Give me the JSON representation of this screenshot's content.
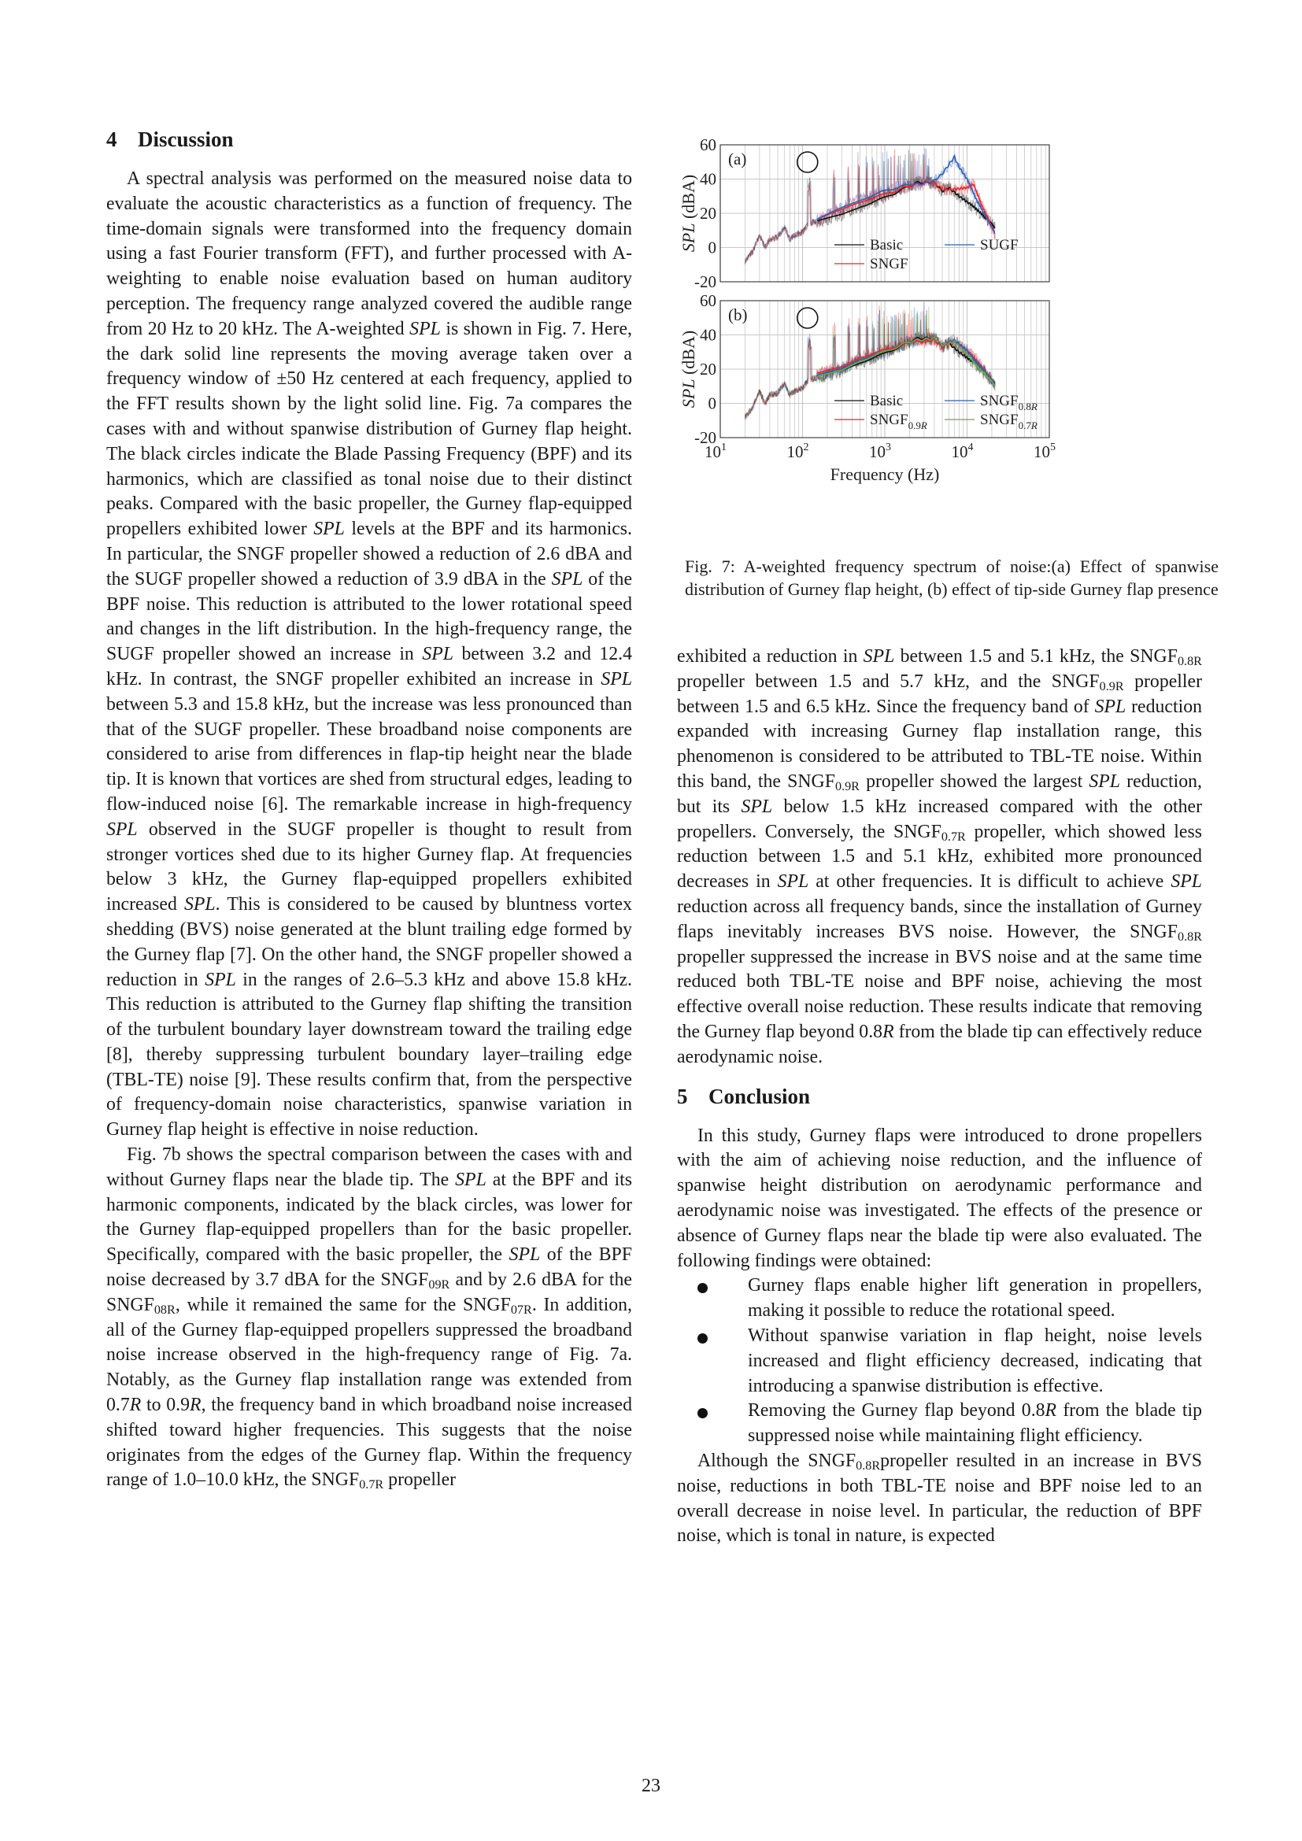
{
  "discussion": {
    "number": "4",
    "title": "Discussion",
    "paragraphs": [
      [
        {
          "t": "A spectral analysis was performed on the measured noise data to evaluate the acoustic characteristics as a function of frequency. The time-domain signals were transformed into the frequency domain using a fast Fourier transform (FFT), and further processed with A-weighting to enable noise evaluation based on human auditory perception. The frequency range analyzed covered the audible range from 20 Hz to 20 kHz. The A-weighted "
        },
        {
          "t": "SPL",
          "i": 1
        },
        {
          "t": " is shown in Fig. 7. Here, the dark solid line represents the moving average taken over a frequency window of ±50 Hz centered at each frequency, applied to the FFT results shown by the light solid line. Fig. 7a compares the cases with and without spanwise distribution of Gurney flap height. The black circles indicate the Blade Passing Frequency (BPF) and its harmonics, which are classified as tonal noise due to their distinct peaks. Compared with the basic propeller, the Gurney flap-equipped propellers exhibited lower "
        },
        {
          "t": "SPL",
          "i": 1
        },
        {
          "t": " levels at the BPF and its harmonics. In particular, the SNGF propeller showed a reduction of 2.6 dBA and the SUGF propeller showed a reduction of 3.9 dBA in the "
        },
        {
          "t": "SPL",
          "i": 1
        },
        {
          "t": " of the BPF noise. This reduction is attributed to the lower rotational speed and changes in the lift distribution. In the high-frequency range, the SUGF propeller showed an increase in "
        },
        {
          "t": "SPL",
          "i": 1
        },
        {
          "t": " between 3.2 and 12.4 kHz. In contrast, the SNGF propeller exhibited an increase in "
        },
        {
          "t": "SPL",
          "i": 1
        },
        {
          "t": " between 5.3 and 15.8 kHz, but the increase was less pronounced than that of the SUGF propeller. These broadband noise components are considered to arise from differences in flap-tip height near the blade tip. It is known that vortices are shed from structural edges, leading to flow-induced noise [6]. The remarkable increase in high-frequency "
        },
        {
          "t": "SPL",
          "i": 1
        },
        {
          "t": " observed in the SUGF propeller is thought to result from stronger vortices shed due to its higher Gurney flap. At frequencies below 3 kHz, the Gurney flap-equipped propellers exhibited increased "
        },
        {
          "t": "SPL",
          "i": 1
        },
        {
          "t": ". This is considered to be caused by bluntness vortex shedding (BVS) noise generated at the blunt trailing edge formed by the Gurney flap [7]. On the other hand, the SNGF propeller showed a reduction in "
        },
        {
          "t": "SPL",
          "i": 1
        },
        {
          "t": " in the ranges of 2.6–5.3 kHz and above 15.8 kHz. This reduction is attributed to the Gurney flap shifting the transition of the turbulent boundary layer downstream toward the trailing edge [8], thereby suppressing turbulent boundary layer–trailing edge (TBL-TE) noise [9]. These results confirm that, from the perspective of frequency-domain noise characteristics, spanwise variation in Gurney flap height is effective in noise reduction."
        }
      ],
      [
        {
          "t": "Fig. 7b shows the spectral comparison between the cases with and without Gurney flaps near the blade tip. The "
        },
        {
          "t": "SPL",
          "i": 1
        },
        {
          "t": " at the BPF and its harmonic components, indicated by the black circles, was lower for the Gurney flap-equipped propellers than for the basic propeller. Specifically, compared with the basic propeller, the "
        },
        {
          "t": "SPL",
          "i": 1
        },
        {
          "t": " of the BPF noise decreased by 3.7 dBA for the SNGF"
        },
        {
          "sub": "09R"
        },
        {
          "t": " and by 2.6 dBA for the SNGF"
        },
        {
          "sub": "08R"
        },
        {
          "t": ", while it remained the same for the SNGF"
        },
        {
          "sub": "07R"
        },
        {
          "t": ". In addition, all of the Gurney flap-equipped propellers suppressed the broadband noise increase observed in the high-frequency range of Fig. 7a. Notably, as the Gurney flap installation range was extended from 0.7"
        },
        {
          "t": "R",
          "i": 1
        },
        {
          "t": " to 0.9"
        },
        {
          "t": "R",
          "i": 1
        },
        {
          "t": ", the frequency band in which broadband noise increased shifted toward higher frequencies. This suggests that the noise originates from the edges of the Gurney flap. Within the frequency range of 1.0–10.0 kHz, the SNGF"
        },
        {
          "sub": "0.7R"
        },
        {
          "t": " propeller"
        }
      ]
    ],
    "continuation": [
      {
        "t": "exhibited a reduction in "
      },
      {
        "t": "SPL",
        "i": 1
      },
      {
        "t": " between 1.5 and 5.1 kHz, the SNGF"
      },
      {
        "sub": "0.8R"
      },
      {
        "t": " propeller between 1.5 and 5.7 kHz, and the SNGF"
      },
      {
        "sub": "0.9R"
      },
      {
        "t": " propeller between 1.5 and 6.5 kHz. Since the frequency band of "
      },
      {
        "t": "SPL",
        "i": 1
      },
      {
        "t": " reduction expanded with increasing Gurney flap installation range, this phenomenon is considered to be attributed to TBL-TE noise. Within this band, the SNGF"
      },
      {
        "sub": "0.9R"
      },
      {
        "t": " propeller showed the largest "
      },
      {
        "t": "SPL",
        "i": 1
      },
      {
        "t": " reduction, but its "
      },
      {
        "t": "SPL",
        "i": 1
      },
      {
        "t": " below 1.5 kHz increased compared with the other propellers. Conversely, the SNGF"
      },
      {
        "sub": "0.7R"
      },
      {
        "t": " propeller, which showed less reduction between 1.5 and 5.1 kHz, exhibited more pronounced decreases in "
      },
      {
        "t": "SPL",
        "i": 1
      },
      {
        "t": " at other frequencies. It is difficult to achieve "
      },
      {
        "t": "SPL",
        "i": 1
      },
      {
        "t": " reduction across all frequency bands, since the installation of Gurney flaps inevitably increases BVS noise. However, the SNGF"
      },
      {
        "sub": "0.8R"
      },
      {
        "t": " propeller suppressed the increase in BVS noise and at the same time reduced both TBL-TE noise and BPF noise, achieving the most effective overall noise reduction. These results indicate that removing the Gurney flap beyond 0.8"
      },
      {
        "t": "R",
        "i": 1
      },
      {
        "t": " from the blade tip can effectively reduce aerodynamic noise."
      }
    ]
  },
  "conclusion": {
    "number": "5",
    "title": "Conclusion",
    "intro": [
      {
        "t": "In this study, Gurney flaps were introduced to drone propellers with the aim of achieving noise reduction, and the influence of spanwise height distribution on aerodynamic performance and aerodynamic noise was investigated. The effects of the presence or absence of Gurney flaps near the blade tip were also evaluated. The following findings were obtained:"
      }
    ],
    "bullets": [
      [
        {
          "t": "Gurney flaps enable higher lift generation in propellers, making it possible to reduce the rotational speed."
        }
      ],
      [
        {
          "t": "Without spanwise variation in flap height, noise levels increased and flight efficiency decreased, indicating that introducing a spanwise distribution is effective."
        }
      ],
      [
        {
          "t": "Removing the Gurney flap beyond 0.8"
        },
        {
          "t": "R",
          "i": 1
        },
        {
          "t": " from the blade tip suppressed noise while maintaining flight efficiency."
        }
      ]
    ],
    "closing": [
      {
        "t": "Although the SNGF"
      },
      {
        "sub": "0.8R"
      },
      {
        "t": "propeller resulted in an increase in BVS noise, reductions in both TBL-TE noise and BPF noise led to an overall decrease in noise level. In particular, the reduction of BPF noise, which is tonal in nature, is expected"
      }
    ]
  },
  "figure": {
    "caption": "Fig. 7: A-weighted frequency spectrum of noise:(a) Effect of spanwise distribution of Gurney flap height, (b) effect of tip-side Gurney flap presence"
  },
  "chart_data": [
    {
      "type": "line",
      "panel_label": "(a)",
      "xlabel": "Frequency (Hz)",
      "ylabel": "SPL (dBA)",
      "xscale": "log",
      "xlim": [
        10,
        100000
      ],
      "ylim": [
        -20,
        60
      ],
      "yticks": [
        60,
        40,
        20,
        0,
        -20
      ],
      "xticks": [
        {
          "base": "10",
          "exp": "1"
        },
        {
          "base": "10",
          "exp": "2"
        },
        {
          "base": "10",
          "exp": "3"
        },
        {
          "base": "10",
          "exp": "4"
        },
        {
          "base": "10",
          "exp": "5"
        }
      ],
      "grid": true,
      "legend_position": "bottom-center",
      "bpf_marker_hz": 120,
      "series": [
        {
          "name": "Basic",
          "sub": "",
          "color": "#111111",
          "x": [
            150,
            300,
            500,
            1000,
            2000,
            2500,
            4000,
            5000,
            6000,
            8000,
            12000,
            20000,
            22000
          ],
          "y": [
            15,
            19,
            24,
            29,
            36,
            38,
            38,
            33,
            35,
            30,
            24,
            14,
            11
          ]
        },
        {
          "name": "SNGF",
          "sub": "",
          "color": "#e8262b",
          "x": [
            150,
            300,
            500,
            1000,
            2000,
            2500,
            4000,
            5000,
            7000,
            10000,
            12000,
            15000,
            22000
          ],
          "y": [
            16,
            22,
            27,
            31,
            36,
            37,
            38,
            34,
            34,
            35,
            37,
            25,
            8
          ]
        },
        {
          "name": "SUGF",
          "sub": "",
          "color": "#2f5fb8",
          "x": [
            150,
            300,
            500,
            1000,
            2000,
            2500,
            4000,
            5000,
            7000,
            8000,
            10000,
            13000,
            22000
          ],
          "y": [
            16,
            23,
            28,
            33,
            37,
            37,
            39,
            43,
            53,
            47,
            40,
            28,
            8
          ]
        }
      ]
    },
    {
      "type": "line",
      "panel_label": "(b)",
      "xlabel": "Frequency (Hz)",
      "ylabel": "SPL (dBA)",
      "xscale": "log",
      "xlim": [
        10,
        100000
      ],
      "ylim": [
        -20,
        60
      ],
      "yticks": [
        60,
        40,
        20,
        0,
        -20
      ],
      "xticks": [
        {
          "base": "10",
          "exp": "1"
        },
        {
          "base": "10",
          "exp": "2"
        },
        {
          "base": "10",
          "exp": "3"
        },
        {
          "base": "10",
          "exp": "4"
        },
        {
          "base": "10",
          "exp": "5"
        }
      ],
      "grid": true,
      "legend_position": "bottom-center",
      "bpf_marker_hz": 120,
      "series": [
        {
          "name": "Basic",
          "sub": "",
          "color": "#111111",
          "x": [
            150,
            300,
            500,
            1000,
            2000,
            2500,
            4000,
            5000,
            6000,
            8000,
            12000,
            20000,
            22000
          ],
          "y": [
            15,
            19,
            24,
            29,
            36,
            38,
            38,
            33,
            35,
            30,
            24,
            14,
            11
          ]
        },
        {
          "name": "SNGF",
          "sub": "0.9R",
          "color": "#e8262b",
          "x": [
            150,
            300,
            500,
            1000,
            2000,
            2500,
            4000,
            5000,
            7000,
            10000,
            12000,
            20000,
            22000
          ],
          "y": [
            17,
            21,
            27,
            31,
            36,
            36,
            37,
            33,
            36,
            31,
            27,
            14,
            10
          ]
        },
        {
          "name": "SNGF",
          "sub": "0.8R",
          "color": "#2f5fb8",
          "x": [
            150,
            300,
            500,
            1000,
            2000,
            2500,
            4000,
            5000,
            7000,
            10000,
            12000,
            20000,
            22000
          ],
          "y": [
            16,
            20,
            26,
            30,
            36,
            37,
            38,
            34,
            37,
            31,
            26,
            14,
            10
          ]
        },
        {
          "name": "SNGF",
          "sub": "0.7R",
          "color": "#6aa84f",
          "x": [
            150,
            300,
            500,
            1000,
            2000,
            2500,
            4000,
            5000,
            7000,
            10000,
            12000,
            20000,
            22000
          ],
          "y": [
            15,
            19,
            25,
            30,
            36,
            37,
            38,
            34,
            36,
            29,
            24,
            13,
            10
          ]
        }
      ]
    }
  ],
  "page_number": "23"
}
